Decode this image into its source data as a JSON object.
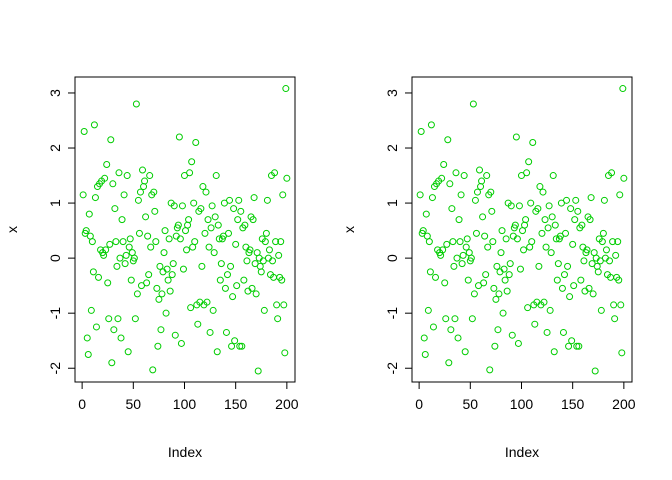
{
  "chart_data": [
    {
      "type": "scatter",
      "xlabel": "Index",
      "ylabel": "x",
      "color": "#00cd00",
      "xlim": [
        -6.96,
        207.96
      ],
      "ylim": [
        -2.25,
        3.29
      ],
      "xticks": [
        0,
        50,
        100,
        150,
        200
      ],
      "yticks": [
        -2,
        -1,
        0,
        1,
        2,
        3
      ],
      "x": [
        1,
        2,
        3,
        4,
        5,
        6,
        7,
        8,
        9,
        10,
        11,
        12,
        13,
        14,
        15,
        16,
        17,
        18,
        19,
        20,
        21,
        22,
        23,
        24,
        25,
        26,
        27,
        28,
        29,
        30,
        31,
        32,
        33,
        34,
        35,
        36,
        37,
        38,
        39,
        40,
        41,
        42,
        43,
        44,
        45,
        46,
        47,
        48,
        49,
        50,
        51,
        52,
        53,
        54,
        55,
        56,
        57,
        58,
        59,
        60,
        61,
        62,
        63,
        64,
        65,
        66,
        67,
        68,
        69,
        70,
        71,
        72,
        73,
        74,
        75,
        76,
        77,
        78,
        79,
        80,
        81,
        82,
        83,
        84,
        85,
        86,
        87,
        88,
        89,
        90,
        91,
        92,
        93,
        94,
        95,
        96,
        97,
        98,
        99,
        100,
        101,
        102,
        103,
        104,
        105,
        106,
        107,
        108,
        109,
        110,
        111,
        112,
        113,
        114,
        115,
        116,
        117,
        118,
        119,
        120,
        121,
        122,
        123,
        124,
        125,
        126,
        127,
        128,
        129,
        130,
        131,
        132,
        133,
        134,
        135,
        136,
        137,
        138,
        139,
        140,
        141,
        142,
        143,
        144,
        145,
        146,
        147,
        148,
        149,
        150,
        151,
        152,
        153,
        154,
        155,
        156,
        157,
        158,
        159,
        160,
        161,
        162,
        163,
        164,
        165,
        166,
        167,
        168,
        169,
        170,
        171,
        172,
        173,
        174,
        175,
        176,
        177,
        178,
        179,
        180,
        181,
        182,
        183,
        184,
        185,
        186,
        187,
        188,
        189,
        190,
        191,
        192,
        193,
        194,
        195,
        196,
        197,
        198,
        199,
        200
      ],
      "values": [
        1.15,
        2.3,
        0.45,
        0.5,
        -1.45,
        -1.75,
        0.8,
        0.4,
        -0.95,
        0.3,
        -0.25,
        2.42,
        1.1,
        -1.25,
        1.3,
        -0.35,
        1.35,
        0.15,
        1.4,
        0.1,
        0.05,
        1.45,
        0.15,
        1.7,
        -0.45,
        -1.1,
        0.25,
        2.15,
        -1.9,
        1.35,
        -1.3,
        0.9,
        0.3,
        -0.15,
        -1.1,
        1.55,
        0.0,
        -1.45,
        0.7,
        0.3,
        1.15,
        -0.1,
        0.05,
        1.5,
        -1.7,
        0.2,
        0.35,
        -0.4,
        0.1,
        -0.05,
        0.0,
        -1.1,
        2.8,
        -0.65,
        1.05,
        0.45,
        1.2,
        -0.5,
        1.6,
        1.3,
        1.4,
        0.75,
        -0.45,
        0.4,
        -0.3,
        1.5,
        0.2,
        1.15,
        -2.03,
        1.2,
        0.85,
        0.3,
        -0.55,
        -1.6,
        -0.75,
        -0.15,
        -1.3,
        -0.65,
        -0.25,
        0.1,
        0.5,
        -1.0,
        -0.2,
        -0.4,
        0.35,
        -0.6,
        1.0,
        -0.3,
        -0.1,
        0.95,
        -1.4,
        0.4,
        0.55,
        0.6,
        2.2,
        0.35,
        -1.55,
        0.95,
        -0.2,
        1.5,
        0.5,
        0.15,
        0.6,
        0.7,
        1.55,
        -0.9,
        1.75,
        0.2,
        1.0,
        0.3,
        2.1,
        -0.85,
        -1.2,
        0.85,
        -0.8,
        0.9,
        -0.15,
        1.3,
        -0.85,
        0.45,
        1.2,
        -0.8,
        0.7,
        0.2,
        -1.35,
        0.55,
        0.95,
        -0.95,
        0.1,
        0.75,
        1.5,
        -1.7,
        0.6,
        0.35,
        -0.4,
        -0.1,
        0.35,
        0.4,
        1.0,
        -0.55,
        -1.35,
        -0.3,
        0.45,
        1.05,
        -0.15,
        -1.6,
        -0.7,
        0.9,
        -1.5,
        0.25,
        -0.5,
        0.7,
        1.05,
        -1.6,
        0.85,
        -1.6,
        0.55,
        -0.4,
        0.6,
        0.2,
        -0.05,
        -0.6,
        0.1,
        0.15,
        0.75,
        -0.55,
        0.7,
        1.1,
        -0.1,
        -0.65,
        0.1,
        -2.05,
        0.0,
        -0.15,
        -0.25,
        0.35,
        -0.05,
        -0.95,
        0.3,
        0.45,
        1.05,
        0.0,
        0.15,
        -0.3,
        1.5,
        -0.05,
        -0.35,
        1.55,
        0.3,
        -0.85,
        -1.1,
        0.05,
        -0.35,
        0.3,
        -0.4,
        1.15,
        -0.85,
        -1.72,
        3.08,
        1.45
      ]
    },
    {
      "type": "scatter",
      "xlabel": "Index",
      "ylabel": "x",
      "color": "#00cd00",
      "xlim": [
        -6.96,
        207.96
      ],
      "ylim": [
        -2.25,
        3.29
      ],
      "xticks": [
        0,
        50,
        100,
        150,
        200
      ],
      "yticks": [
        -2,
        -1,
        0,
        1,
        2,
        3
      ],
      "x": [
        1,
        2,
        3,
        4,
        5,
        6,
        7,
        8,
        9,
        10,
        11,
        12,
        13,
        14,
        15,
        16,
        17,
        18,
        19,
        20,
        21,
        22,
        23,
        24,
        25,
        26,
        27,
        28,
        29,
        30,
        31,
        32,
        33,
        34,
        35,
        36,
        37,
        38,
        39,
        40,
        41,
        42,
        43,
        44,
        45,
        46,
        47,
        48,
        49,
        50,
        51,
        52,
        53,
        54,
        55,
        56,
        57,
        58,
        59,
        60,
        61,
        62,
        63,
        64,
        65,
        66,
        67,
        68,
        69,
        70,
        71,
        72,
        73,
        74,
        75,
        76,
        77,
        78,
        79,
        80,
        81,
        82,
        83,
        84,
        85,
        86,
        87,
        88,
        89,
        90,
        91,
        92,
        93,
        94,
        95,
        96,
        97,
        98,
        99,
        100,
        101,
        102,
        103,
        104,
        105,
        106,
        107,
        108,
        109,
        110,
        111,
        112,
        113,
        114,
        115,
        116,
        117,
        118,
        119,
        120,
        121,
        122,
        123,
        124,
        125,
        126,
        127,
        128,
        129,
        130,
        131,
        132,
        133,
        134,
        135,
        136,
        137,
        138,
        139,
        140,
        141,
        142,
        143,
        144,
        145,
        146,
        147,
        148,
        149,
        150,
        151,
        152,
        153,
        154,
        155,
        156,
        157,
        158,
        159,
        160,
        161,
        162,
        163,
        164,
        165,
        166,
        167,
        168,
        169,
        170,
        171,
        172,
        173,
        174,
        175,
        176,
        177,
        178,
        179,
        180,
        181,
        182,
        183,
        184,
        185,
        186,
        187,
        188,
        189,
        190,
        191,
        192,
        193,
        194,
        195,
        196,
        197,
        198,
        199,
        200
      ],
      "values": [
        1.15,
        2.3,
        0.45,
        0.5,
        -1.45,
        -1.75,
        0.8,
        0.4,
        -0.95,
        0.3,
        -0.25,
        2.42,
        1.1,
        -1.25,
        1.3,
        -0.35,
        1.35,
        0.15,
        1.4,
        0.1,
        0.05,
        1.45,
        0.15,
        1.7,
        -0.45,
        -1.1,
        0.25,
        2.15,
        -1.9,
        1.35,
        -1.3,
        0.9,
        0.3,
        -0.15,
        -1.1,
        1.55,
        0.0,
        -1.45,
        0.7,
        0.3,
        1.15,
        -0.1,
        0.05,
        1.5,
        -1.7,
        0.2,
        0.35,
        -0.4,
        0.1,
        -0.05,
        0.0,
        -1.1,
        2.8,
        -0.65,
        1.05,
        0.45,
        1.2,
        -0.5,
        1.6,
        1.3,
        1.4,
        0.75,
        -0.45,
        0.4,
        -0.3,
        1.5,
        0.2,
        1.15,
        -2.03,
        1.2,
        0.85,
        0.3,
        -0.55,
        -1.6,
        -0.75,
        -0.15,
        -1.3,
        -0.65,
        -0.25,
        0.1,
        0.5,
        -1.0,
        -0.2,
        -0.4,
        0.35,
        -0.6,
        1.0,
        -0.3,
        -0.1,
        0.95,
        -1.4,
        0.4,
        0.55,
        0.6,
        2.2,
        0.35,
        -1.55,
        0.95,
        -0.2,
        1.5,
        0.5,
        0.15,
        0.6,
        0.7,
        1.55,
        -0.9,
        1.75,
        0.2,
        1.0,
        0.3,
        2.1,
        -0.85,
        -1.2,
        0.85,
        -0.8,
        0.9,
        -0.15,
        1.3,
        -0.85,
        0.45,
        1.2,
        -0.8,
        0.7,
        0.2,
        -1.35,
        0.55,
        0.95,
        -0.95,
        0.1,
        0.75,
        1.5,
        -1.7,
        0.6,
        0.35,
        -0.4,
        -0.1,
        0.35,
        0.4,
        1.0,
        -0.55,
        -1.35,
        -0.3,
        0.45,
        1.05,
        -0.15,
        -1.6,
        -0.7,
        0.9,
        -1.5,
        0.25,
        -0.5,
        0.7,
        1.05,
        -1.6,
        0.85,
        -1.6,
        0.55,
        -0.4,
        0.6,
        0.2,
        -0.05,
        -0.6,
        0.1,
        0.15,
        0.75,
        -0.55,
        0.7,
        1.1,
        -0.1,
        -0.65,
        0.1,
        -2.05,
        0.0,
        -0.15,
        -0.25,
        0.35,
        -0.05,
        -0.95,
        0.3,
        0.45,
        1.05,
        0.0,
        0.15,
        -0.3,
        1.5,
        -0.05,
        -0.35,
        1.55,
        0.3,
        -0.85,
        -1.1,
        0.05,
        -0.35,
        0.3,
        -0.4,
        1.15,
        -0.85,
        -1.72,
        3.08,
        1.45
      ]
    }
  ]
}
